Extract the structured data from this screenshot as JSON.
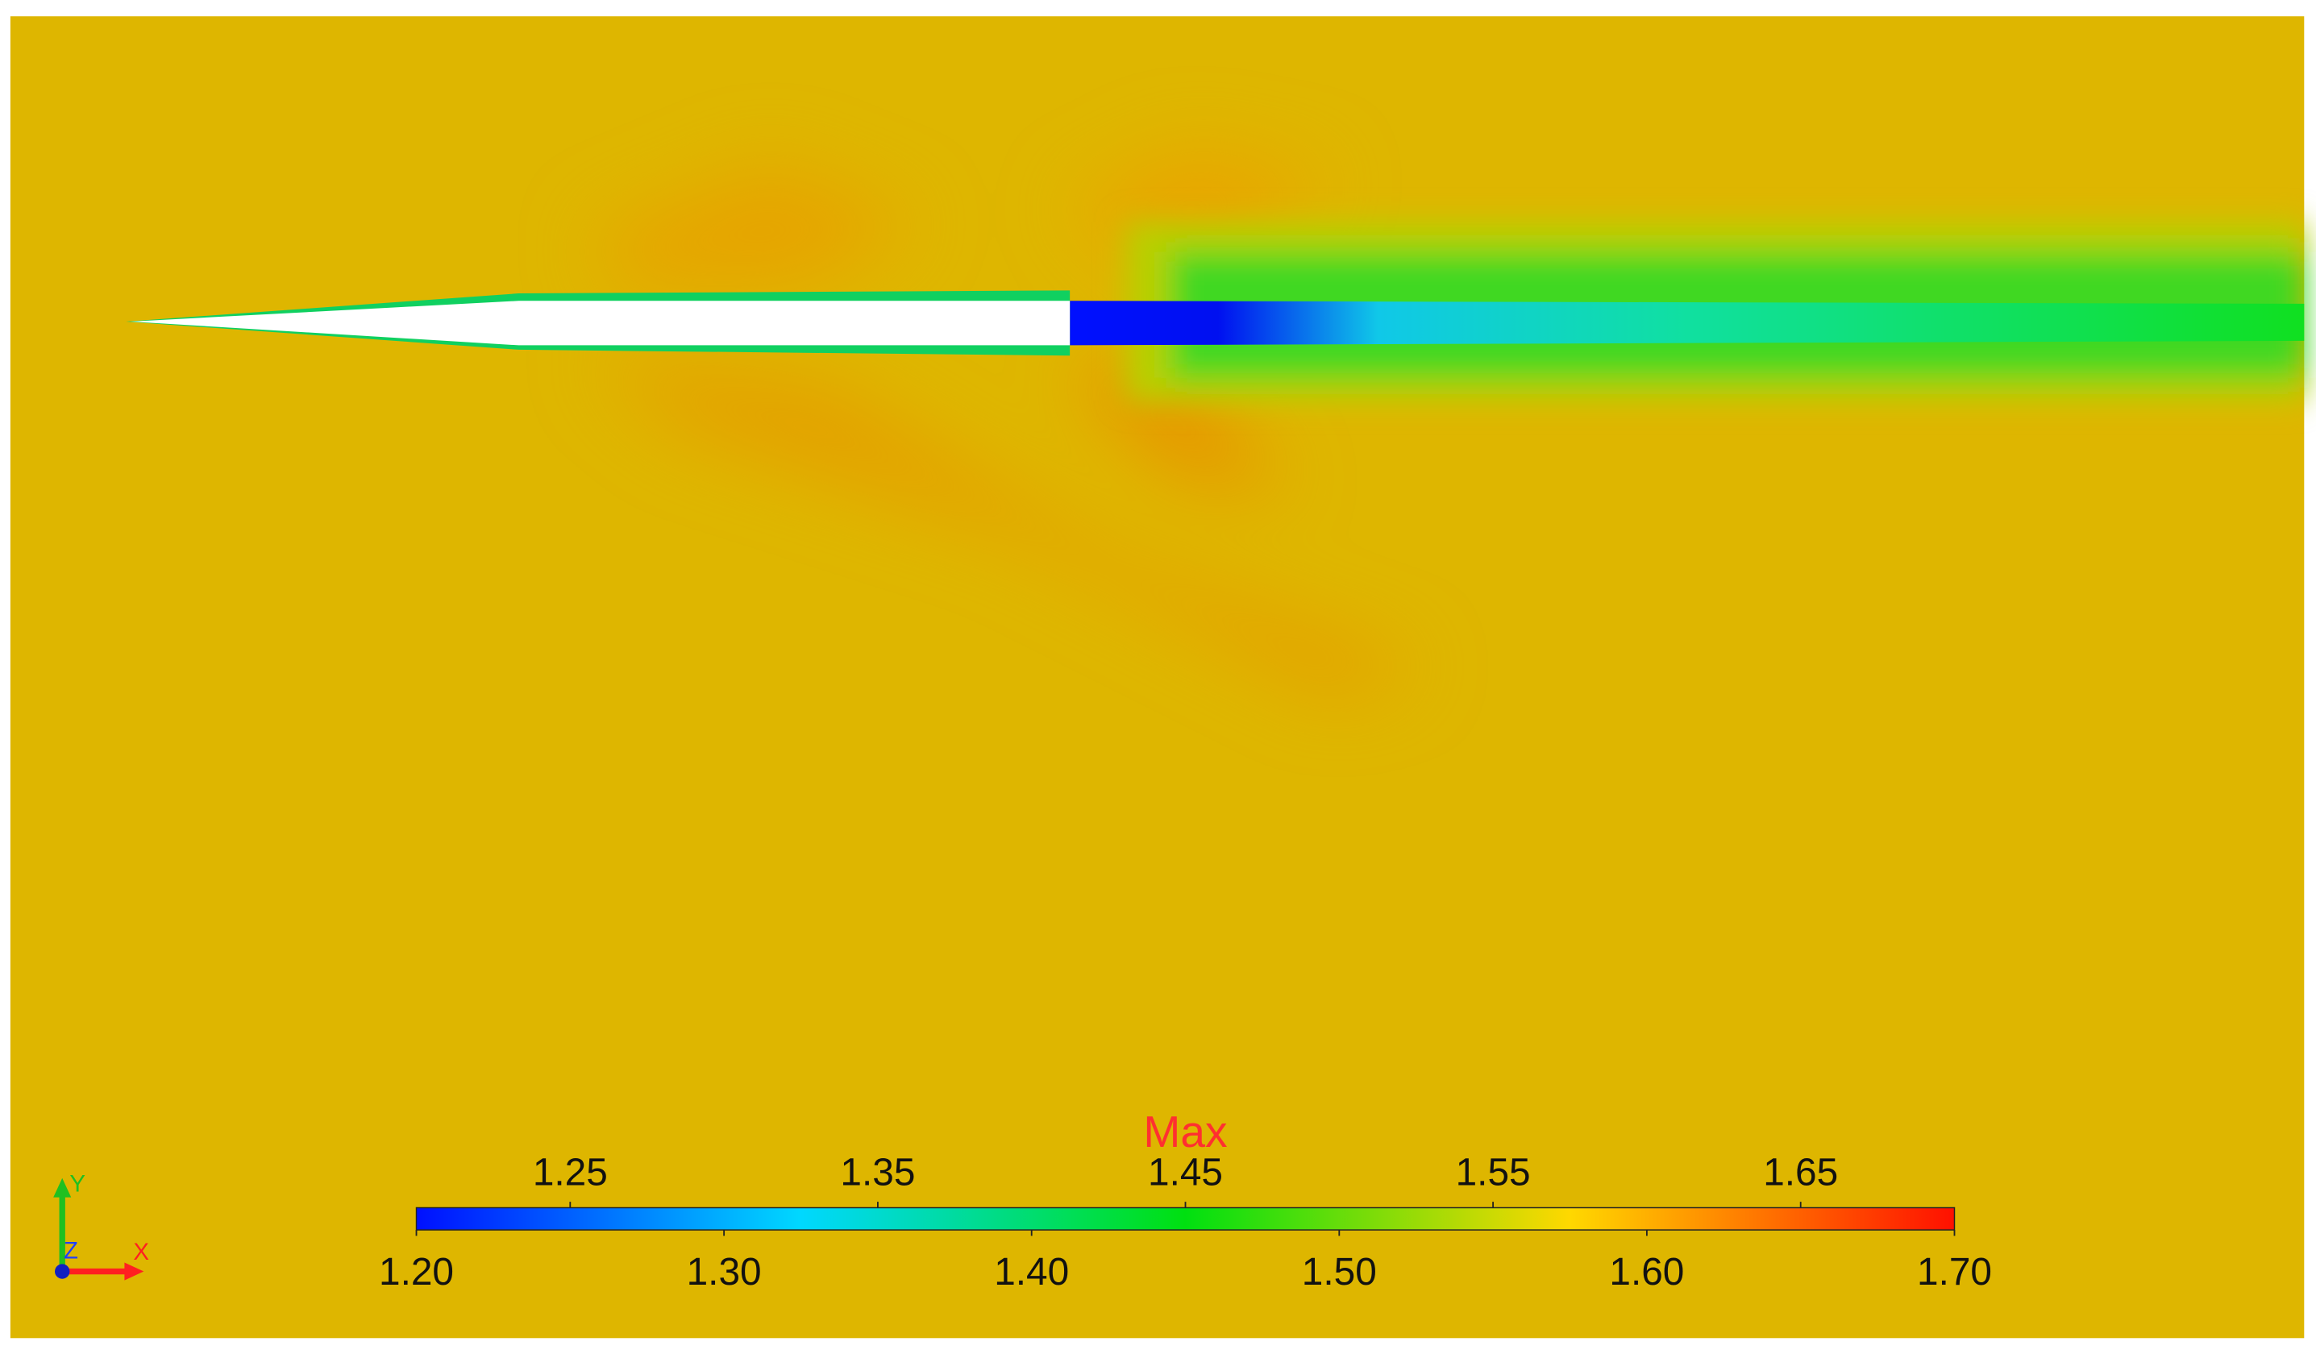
{
  "colorbar": {
    "title": "Max",
    "lim": [
      1.2,
      1.7
    ],
    "colors": [
      "#0010ff",
      "#00d8ff",
      "#00e010",
      "#ffd800",
      "#ff1000"
    ],
    "upper_ticks": [
      1.25,
      1.35,
      1.45,
      1.55,
      1.65
    ],
    "lower_ticks": [
      {
        "value": 1.2,
        "label": "1.20"
      },
      {
        "value": 1.3,
        "label": "1.30"
      },
      {
        "value": 1.4,
        "label": "1.40"
      },
      {
        "value": 1.5,
        "label": "1.50"
      },
      {
        "value": 1.6,
        "label": "1.60"
      },
      {
        "value": 1.7,
        "label": "1.70"
      }
    ]
  },
  "axes_triad": {
    "y": "Y",
    "z": "Z",
    "x": "X"
  }
}
